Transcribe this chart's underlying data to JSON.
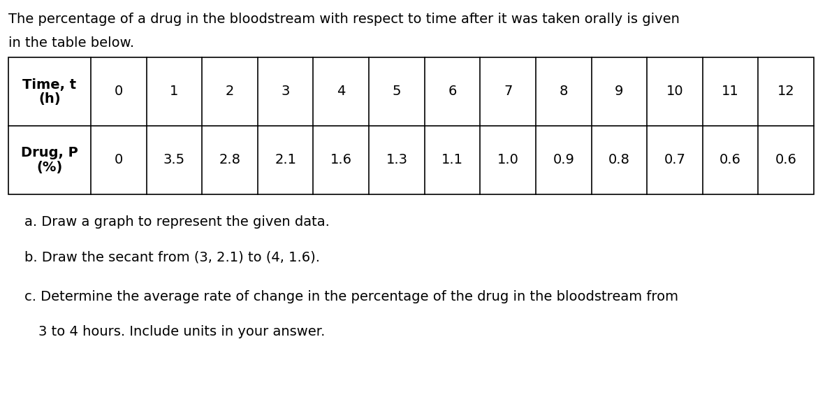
{
  "intro_text_line1": "The percentage of a drug in the bloodstream with respect to time after it was taken orally is given",
  "intro_text_line2": "in the table below.",
  "row1_header_line1": "Time, ",
  "row1_header_line1_italic": "t",
  "row1_header_line2": "(h)",
  "row2_header_line1": "Drug, ",
  "row2_header_line1_italic": "P",
  "row2_header_line2": "(%)",
  "row1_values": [
    "0",
    "1",
    "2",
    "3",
    "4",
    "5",
    "6",
    "7",
    "8",
    "9",
    "10",
    "11",
    "12"
  ],
  "row2_values": [
    "0",
    "3.5",
    "2.8",
    "2.1",
    "1.6",
    "1.3",
    "1.1",
    "1.0",
    "0.9",
    "0.8",
    "0.7",
    "0.6",
    "0.6"
  ],
  "question_a": "a. Draw a graph to represent the given data.",
  "question_b": "b. Draw the secant from (3, 2.1) to (4, 1.6).",
  "question_c_line1": "c. Determine the average rate of change in the percentage of the drug in the bloodstream from",
  "question_c_line2": "   3 to 4 hours. Include units in your answer.",
  "bg_color": "#ffffff",
  "text_color": "#000000",
  "table_border_color": "#000000",
  "font_size_intro": 14,
  "font_size_table": 14,
  "font_size_questions": 14
}
